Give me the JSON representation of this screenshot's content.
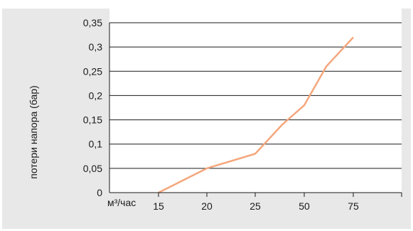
{
  "chart_data": {
    "type": "line",
    "title": "",
    "categories": [
      "15",
      "20",
      "25",
      "50",
      "75"
    ],
    "x_positions_extra_end": true,
    "series": [
      {
        "color": "#f4a77c",
        "points": [
          {
            "x": "15",
            "y": 0.0
          },
          {
            "x": "20",
            "y": 0.05
          },
          {
            "x": "25",
            "y": 0.08
          },
          {
            "x": "50",
            "y": 0.18
          },
          {
            "x": "75",
            "y": 0.32
          }
        ],
        "extra_points": [
          {
            "between": [
              "25",
              "50"
            ],
            "frac": 0.55,
            "y": 0.14
          },
          {
            "between": [
              "50",
              "75"
            ],
            "frac": 0.45,
            "y": 0.26
          }
        ]
      }
    ],
    "ylabel": "потери напора (бар)",
    "xlabel": "м³/час",
    "ylim": [
      0,
      0.35
    ],
    "yticks": [
      "0",
      "0,05",
      "0,1",
      "0,15",
      "0,2",
      "0,25",
      "0,3",
      "0,35"
    ],
    "grid": "horizontal"
  }
}
